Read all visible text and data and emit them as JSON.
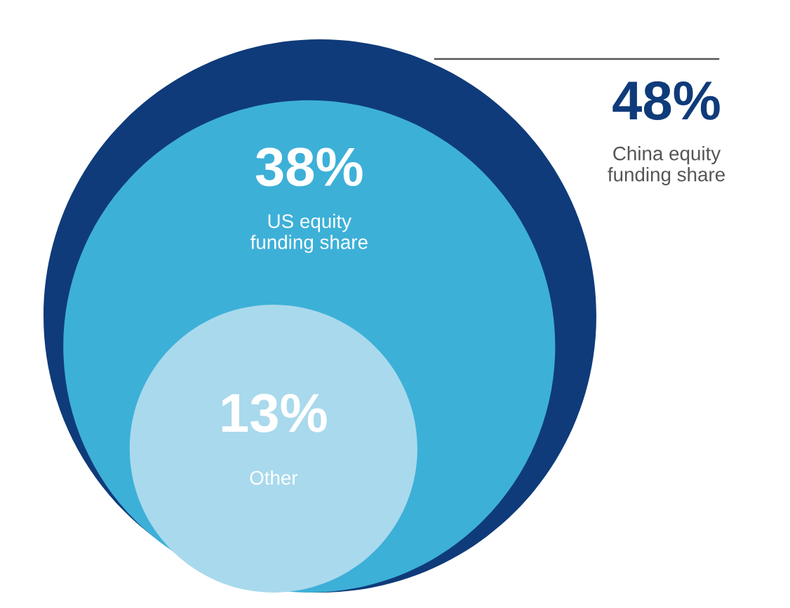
{
  "chart_data": {
    "type": "other",
    "categories": [
      "China equity\nfunding share",
      "US equity\nfunding share",
      "Other"
    ],
    "values": [
      48,
      38,
      13
    ],
    "value_labels": [
      "48%",
      "38%",
      "13%"
    ],
    "colors": [
      "#0f3b7a",
      "#3db0d8",
      "#a9d9ec"
    ]
  }
}
